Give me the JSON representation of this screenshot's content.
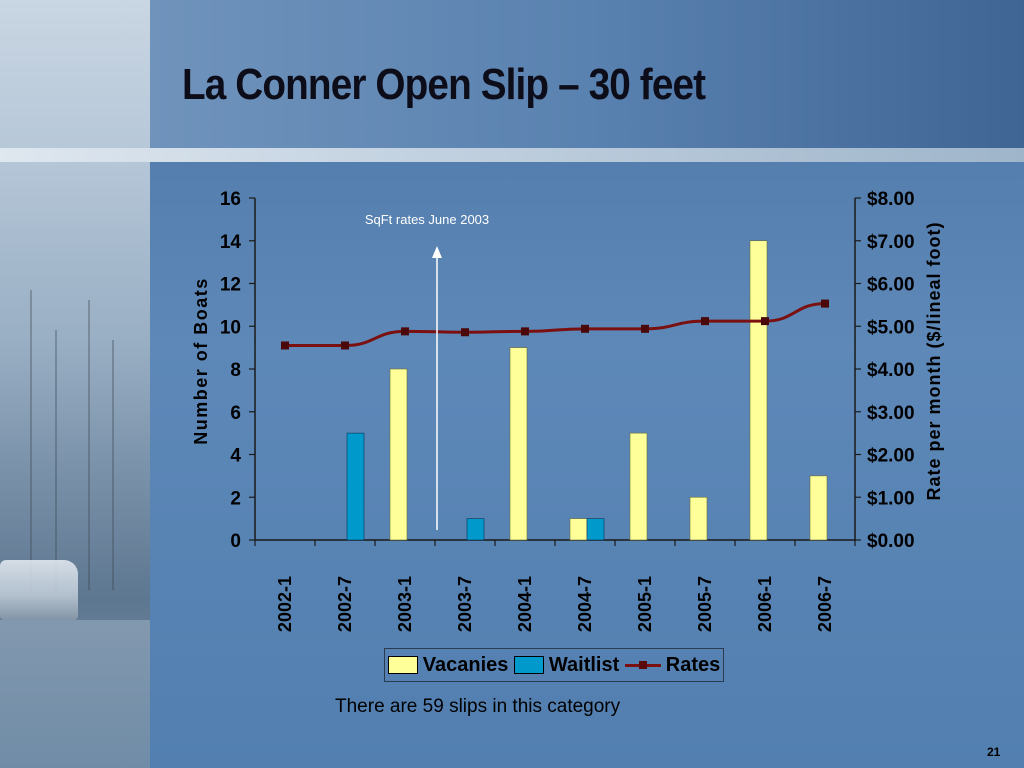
{
  "slide": {
    "title": "La Conner Open Slip – 30 feet",
    "footnote": "There are 59 slips in this category",
    "page_number": "21"
  },
  "colors": {
    "vacancies": "#ffff99",
    "waitlist": "#0099cc",
    "rates": "#7a1010",
    "axis": "#1a1a1a"
  },
  "chart_data": {
    "type": "bar",
    "categories": [
      "2002-1",
      "2002-7",
      "2003-1",
      "2003-7",
      "2004-1",
      "2004-7",
      "2005-1",
      "2005-7",
      "2006-1",
      "2006-7"
    ],
    "series": [
      {
        "name": "Vacanies",
        "kind": "bar",
        "axis": "left",
        "values": [
          0,
          0,
          8,
          0,
          9,
          1,
          5,
          2,
          14,
          3
        ]
      },
      {
        "name": "Waitlist",
        "kind": "bar",
        "axis": "left",
        "values": [
          0,
          5,
          0,
          1,
          0,
          1,
          0,
          0,
          0,
          0
        ]
      },
      {
        "name": "Rates",
        "kind": "line",
        "axis": "right",
        "values": [
          4.55,
          4.55,
          4.88,
          4.86,
          4.88,
          4.94,
          4.94,
          5.12,
          5.12,
          5.53
        ]
      }
    ],
    "ylabel": "Number of Boats",
    "y2label": "Rate per month ($/lineal foot)",
    "ylim": [
      0,
      16
    ],
    "y2lim": [
      0,
      8
    ],
    "yticks": [
      "0",
      "2",
      "4",
      "6",
      "8",
      "10",
      "12",
      "14",
      "16"
    ],
    "y2ticks": [
      "$0.00",
      "$1.00",
      "$2.00",
      "$3.00",
      "$4.00",
      "$5.00",
      "$6.00",
      "$7.00",
      "$8.00"
    ],
    "annotation": {
      "text": "SqFt rates June 2003",
      "category": "2003-7"
    },
    "legend": {
      "placement": "bottom"
    },
    "grid": false
  }
}
